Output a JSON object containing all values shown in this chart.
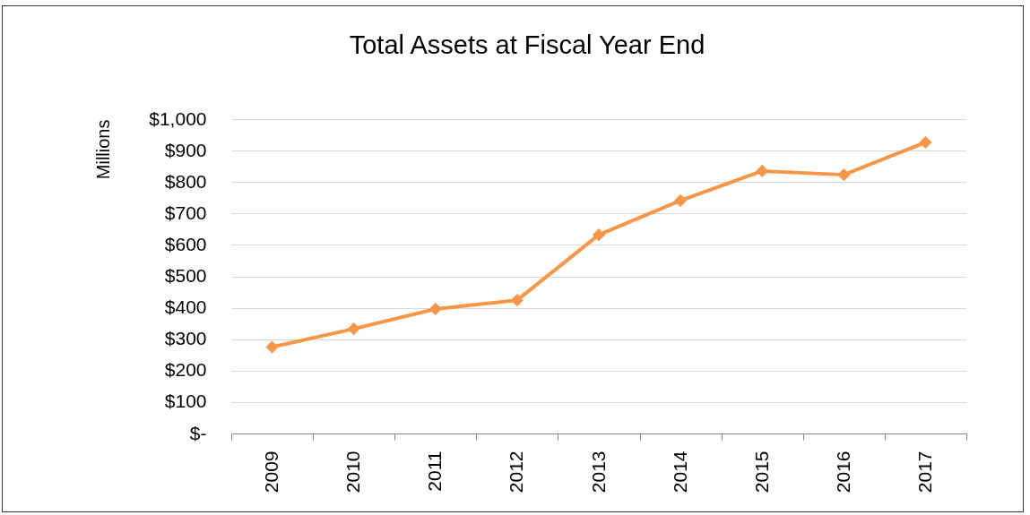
{
  "chart_data": {
    "type": "line",
    "title": "Total Assets at Fiscal Year End",
    "ylabel": "Millions",
    "categories": [
      "2009",
      "2010",
      "2011",
      "2012",
      "2013",
      "2014",
      "2015",
      "2016",
      "2017"
    ],
    "series": [
      {
        "color": "#f79646",
        "values": [
          275,
          333,
          396,
          424,
          632,
          741,
          835,
          823,
          926
        ]
      }
    ],
    "ylim": [
      0,
      1000
    ],
    "yticks": [
      {
        "value": 0,
        "label": "$-"
      },
      {
        "value": 100,
        "label": "$100"
      },
      {
        "value": 200,
        "label": "$200"
      },
      {
        "value": 300,
        "label": "$300"
      },
      {
        "value": 400,
        "label": "$400"
      },
      {
        "value": 500,
        "label": "$500"
      },
      {
        "value": 600,
        "label": "$600"
      },
      {
        "value": 700,
        "label": "$700"
      },
      {
        "value": 800,
        "label": "$800"
      },
      {
        "value": 900,
        "label": "$900"
      },
      {
        "value": 1000,
        "label": "$1,000"
      }
    ],
    "grid": "y",
    "marker": "diamond",
    "line_style": "solid"
  }
}
